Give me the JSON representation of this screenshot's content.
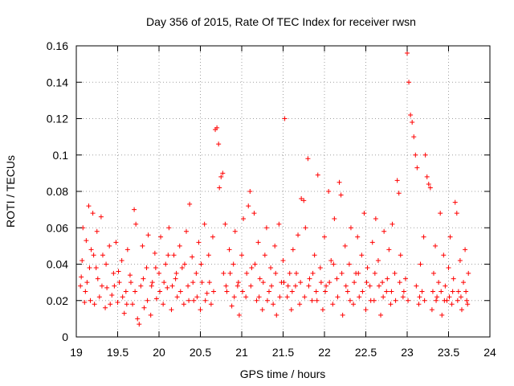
{
  "chart_data": {
    "type": "scatter",
    "title": "Day 356 of 2015, Rate Of TEC Index for receiver rwsn",
    "xlabel": "GPS time / hours",
    "ylabel": "ROTI / TECUs",
    "xlim": [
      19,
      24
    ],
    "ylim": [
      0,
      0.16
    ],
    "x_ticks": [
      19,
      19.5,
      20,
      20.5,
      21,
      21.5,
      22,
      22.5,
      23,
      23.5,
      24
    ],
    "x_tick_labels": [
      "19",
      "19.5",
      "20",
      "20.5",
      "21",
      "21.5",
      "22",
      "22.5",
      "23",
      "23.5",
      "24"
    ],
    "y_ticks": [
      0,
      0.02,
      0.04,
      0.06,
      0.08,
      0.1,
      0.12,
      0.14,
      0.16
    ],
    "y_tick_labels": [
      "0",
      "0.02",
      "0.04",
      "0.06",
      "0.08",
      "0.1",
      "0.12",
      "0.14",
      "0.16"
    ],
    "grid": true,
    "marker": "+",
    "series": [
      {
        "name": "ROTI",
        "color": "#ff0000",
        "points": [
          [
            19.05,
            0.028
          ],
          [
            19.07,
            0.042
          ],
          [
            19.08,
            0.06
          ],
          [
            19.1,
            0.019
          ],
          [
            19.12,
            0.053
          ],
          [
            19.13,
            0.03
          ],
          [
            19.15,
            0.072
          ],
          [
            19.17,
            0.02
          ],
          [
            19.18,
            0.048
          ],
          [
            19.2,
            0.068
          ],
          [
            19.22,
            0.018
          ],
          [
            19.24,
            0.038
          ],
          [
            19.25,
            0.058
          ],
          [
            19.28,
            0.022
          ],
          [
            19.3,
            0.066
          ],
          [
            19.32,
            0.045
          ],
          [
            19.35,
            0.016
          ],
          [
            19.37,
            0.027
          ],
          [
            19.4,
            0.05
          ],
          [
            19.43,
            0.023
          ],
          [
            19.45,
            0.035
          ],
          [
            19.48,
            0.052
          ],
          [
            19.5,
            0.019
          ],
          [
            19.52,
            0.03
          ],
          [
            19.55,
            0.042
          ],
          [
            19.58,
            0.013
          ],
          [
            19.6,
            0.025
          ],
          [
            19.62,
            0.048
          ],
          [
            19.65,
            0.034
          ],
          [
            19.68,
            0.018
          ],
          [
            19.7,
            0.07
          ],
          [
            19.72,
            0.062
          ],
          [
            19.74,
            0.01
          ],
          [
            19.76,
            0.007
          ],
          [
            19.78,
            0.028
          ],
          [
            19.8,
            0.05
          ],
          [
            19.82,
            0.016
          ],
          [
            19.85,
            0.038
          ],
          [
            19.87,
            0.056
          ],
          [
            19.9,
            0.012
          ],
          [
            19.92,
            0.03
          ],
          [
            19.95,
            0.046
          ],
          [
            19.97,
            0.021
          ],
          [
            20.0,
            0.035
          ],
          [
            20.02,
            0.055
          ],
          [
            20.05,
            0.018
          ],
          [
            20.08,
            0.04
          ],
          [
            20.1,
            0.027
          ],
          [
            20.12,
            0.06
          ],
          [
            20.15,
            0.015
          ],
          [
            20.18,
            0.045
          ],
          [
            20.2,
            0.032
          ],
          [
            20.22,
            0.022
          ],
          [
            20.25,
            0.05
          ],
          [
            20.28,
            0.038
          ],
          [
            20.3,
            0.018
          ],
          [
            20.33,
            0.058
          ],
          [
            20.35,
            0.028
          ],
          [
            20.37,
            0.073
          ],
          [
            20.4,
            0.044
          ],
          [
            20.42,
            0.02
          ],
          [
            20.45,
            0.035
          ],
          [
            20.48,
            0.052
          ],
          [
            20.5,
            0.015
          ],
          [
            20.52,
            0.03
          ],
          [
            20.55,
            0.062
          ],
          [
            20.58,
            0.024
          ],
          [
            20.6,
            0.045
          ],
          [
            20.63,
            0.018
          ],
          [
            20.65,
            0.055
          ],
          [
            20.68,
            0.114
          ],
          [
            20.7,
            0.115
          ],
          [
            20.72,
            0.106
          ],
          [
            20.73,
            0.082
          ],
          [
            20.75,
            0.088
          ],
          [
            20.77,
            0.09
          ],
          [
            20.78,
            0.035
          ],
          [
            20.8,
            0.062
          ],
          [
            20.82,
            0.025
          ],
          [
            20.85,
            0.048
          ],
          [
            20.88,
            0.017
          ],
          [
            20.9,
            0.04
          ],
          [
            20.92,
            0.058
          ],
          [
            20.95,
            0.028
          ],
          [
            20.97,
            0.012
          ],
          [
            21.0,
            0.045
          ],
          [
            21.02,
            0.065
          ],
          [
            21.05,
            0.022
          ],
          [
            21.08,
            0.072
          ],
          [
            21.1,
            0.08
          ],
          [
            21.12,
            0.038
          ],
          [
            21.15,
            0.068
          ],
          [
            21.18,
            0.02
          ],
          [
            21.2,
            0.052
          ],
          [
            21.22,
            0.032
          ],
          [
            21.25,
            0.015
          ],
          [
            21.28,
            0.045
          ],
          [
            21.3,
            0.06
          ],
          [
            21.33,
            0.025
          ],
          [
            21.35,
            0.038
          ],
          [
            21.38,
            0.018
          ],
          [
            21.4,
            0.05
          ],
          [
            21.42,
            0.012
          ],
          [
            21.45,
            0.062
          ],
          [
            21.48,
            0.03
          ],
          [
            21.5,
            0.042
          ],
          [
            21.52,
            0.12
          ],
          [
            21.55,
            0.022
          ],
          [
            21.58,
            0.035
          ],
          [
            21.6,
            0.015
          ],
          [
            21.62,
            0.048
          ],
          [
            21.65,
            0.028
          ],
          [
            21.68,
            0.056
          ],
          [
            21.7,
            0.018
          ],
          [
            21.72,
            0.076
          ],
          [
            21.75,
            0.075
          ],
          [
            21.77,
            0.06
          ],
          [
            21.8,
            0.098
          ],
          [
            21.82,
            0.032
          ],
          [
            21.85,
            0.02
          ],
          [
            21.88,
            0.045
          ],
          [
            21.9,
            0.025
          ],
          [
            21.92,
            0.089
          ],
          [
            21.95,
            0.038
          ],
          [
            21.98,
            0.015
          ],
          [
            22.0,
            0.055
          ],
          [
            22.02,
            0.028
          ],
          [
            22.05,
            0.08
          ],
          [
            22.08,
            0.042
          ],
          [
            22.1,
            0.018
          ],
          [
            22.12,
            0.065
          ],
          [
            22.15,
            0.032
          ],
          [
            22.18,
            0.085
          ],
          [
            22.2,
            0.078
          ],
          [
            22.22,
            0.012
          ],
          [
            22.25,
            0.05
          ],
          [
            22.28,
            0.025
          ],
          [
            22.3,
            0.04
          ],
          [
            22.32,
            0.06
          ],
          [
            22.35,
            0.018
          ],
          [
            22.38,
            0.035
          ],
          [
            22.4,
            0.055
          ],
          [
            22.42,
            0.022
          ],
          [
            22.45,
            0.045
          ],
          [
            22.48,
            0.068
          ],
          [
            22.5,
            0.015
          ],
          [
            22.52,
            0.038
          ],
          [
            22.55,
            0.028
          ],
          [
            22.58,
            0.052
          ],
          [
            22.6,
            0.02
          ],
          [
            22.62,
            0.065
          ],
          [
            22.65,
            0.042
          ],
          [
            22.68,
            0.012
          ],
          [
            22.7,
            0.03
          ],
          [
            22.72,
            0.058
          ],
          [
            22.75,
            0.025
          ],
          [
            22.78,
            0.048
          ],
          [
            22.8,
            0.018
          ],
          [
            22.82,
            0.062
          ],
          [
            22.85,
            0.035
          ],
          [
            22.88,
            0.086
          ],
          [
            22.9,
            0.079
          ],
          [
            22.92,
            0.045
          ],
          [
            22.95,
            0.022
          ],
          [
            22.98,
            0.032
          ],
          [
            23.0,
            0.156
          ],
          [
            23.02,
            0.14
          ],
          [
            23.04,
            0.122
          ],
          [
            23.06,
            0.118
          ],
          [
            23.08,
            0.11
          ],
          [
            23.1,
            0.1
          ],
          [
            23.12,
            0.093
          ],
          [
            23.14,
            0.018
          ],
          [
            23.16,
            0.04
          ],
          [
            23.18,
            0.025
          ],
          [
            23.2,
            0.055
          ],
          [
            23.22,
            0.1
          ],
          [
            23.24,
            0.088
          ],
          [
            23.26,
            0.084
          ],
          [
            23.28,
            0.082
          ],
          [
            23.3,
            0.015
          ],
          [
            23.32,
            0.035
          ],
          [
            23.34,
            0.05
          ],
          [
            23.36,
            0.022
          ],
          [
            23.38,
            0.03
          ],
          [
            23.4,
            0.068
          ],
          [
            23.42,
            0.012
          ],
          [
            23.44,
            0.045
          ],
          [
            23.46,
            0.028
          ],
          [
            23.48,
            0.02
          ],
          [
            23.5,
            0.038
          ],
          [
            23.52,
            0.055
          ],
          [
            23.54,
            0.018
          ],
          [
            23.56,
            0.032
          ],
          [
            23.58,
            0.074
          ],
          [
            23.6,
            0.068
          ],
          [
            23.62,
            0.025
          ],
          [
            23.64,
            0.042
          ],
          [
            23.66,
            0.015
          ],
          [
            23.68,
            0.03
          ],
          [
            23.7,
            0.048
          ],
          [
            23.72,
            0.02
          ],
          [
            23.74,
            0.035
          ],
          [
            19.06,
            0.033
          ],
          [
            19.11,
            0.025
          ],
          [
            19.16,
            0.038
          ],
          [
            19.21,
            0.045
          ],
          [
            19.26,
            0.032
          ],
          [
            19.31,
            0.028
          ],
          [
            19.36,
            0.04
          ],
          [
            19.41,
            0.018
          ],
          [
            19.46,
            0.028
          ],
          [
            19.51,
            0.036
          ],
          [
            19.56,
            0.022
          ],
          [
            19.61,
            0.018
          ],
          [
            19.66,
            0.03
          ],
          [
            19.71,
            0.025
          ],
          [
            19.81,
            0.032
          ],
          [
            19.86,
            0.02
          ],
          [
            19.91,
            0.028
          ],
          [
            19.96,
            0.038
          ],
          [
            20.01,
            0.025
          ],
          [
            20.06,
            0.03
          ],
          [
            20.11,
            0.045
          ],
          [
            20.16,
            0.028
          ],
          [
            20.21,
            0.035
          ],
          [
            20.26,
            0.025
          ],
          [
            20.31,
            0.04
          ],
          [
            20.36,
            0.02
          ],
          [
            20.41,
            0.03
          ],
          [
            20.46,
            0.022
          ],
          [
            20.51,
            0.04
          ],
          [
            20.56,
            0.02
          ],
          [
            20.61,
            0.03
          ],
          [
            20.66,
            0.025
          ],
          [
            20.81,
            0.028
          ],
          [
            20.86,
            0.035
          ],
          [
            20.91,
            0.022
          ],
          [
            20.96,
            0.03
          ],
          [
            21.01,
            0.025
          ],
          [
            21.06,
            0.035
          ],
          [
            21.11,
            0.028
          ],
          [
            21.16,
            0.04
          ],
          [
            21.21,
            0.022
          ],
          [
            21.26,
            0.03
          ],
          [
            21.31,
            0.02
          ],
          [
            21.36,
            0.028
          ],
          [
            21.41,
            0.035
          ],
          [
            21.46,
            0.022
          ],
          [
            21.51,
            0.03
          ],
          [
            21.56,
            0.028
          ],
          [
            21.61,
            0.025
          ],
          [
            21.66,
            0.035
          ],
          [
            21.71,
            0.03
          ],
          [
            21.76,
            0.022
          ],
          [
            21.81,
            0.028
          ],
          [
            21.86,
            0.035
          ],
          [
            21.91,
            0.02
          ],
          [
            21.96,
            0.03
          ],
          [
            22.01,
            0.025
          ],
          [
            22.06,
            0.03
          ],
          [
            22.11,
            0.04
          ],
          [
            22.16,
            0.022
          ],
          [
            22.21,
            0.035
          ],
          [
            22.26,
            0.028
          ],
          [
            22.31,
            0.02
          ],
          [
            22.36,
            0.03
          ],
          [
            22.41,
            0.035
          ],
          [
            22.46,
            0.025
          ],
          [
            22.51,
            0.03
          ],
          [
            22.56,
            0.02
          ],
          [
            22.61,
            0.035
          ],
          [
            22.66,
            0.028
          ],
          [
            22.71,
            0.022
          ],
          [
            22.76,
            0.032
          ],
          [
            22.81,
            0.025
          ],
          [
            22.86,
            0.02
          ],
          [
            22.91,
            0.03
          ],
          [
            22.96,
            0.025
          ],
          [
            23.01,
            0.02
          ],
          [
            23.11,
            0.028
          ],
          [
            23.15,
            0.022
          ],
          [
            23.21,
            0.02
          ],
          [
            23.31,
            0.025
          ],
          [
            23.35,
            0.02
          ],
          [
            23.41,
            0.025
          ],
          [
            23.45,
            0.02
          ],
          [
            23.51,
            0.022
          ],
          [
            23.55,
            0.025
          ],
          [
            23.61,
            0.02
          ],
          [
            23.65,
            0.022
          ],
          [
            23.71,
            0.025
          ],
          [
            23.73,
            0.018
          ]
        ]
      }
    ]
  }
}
